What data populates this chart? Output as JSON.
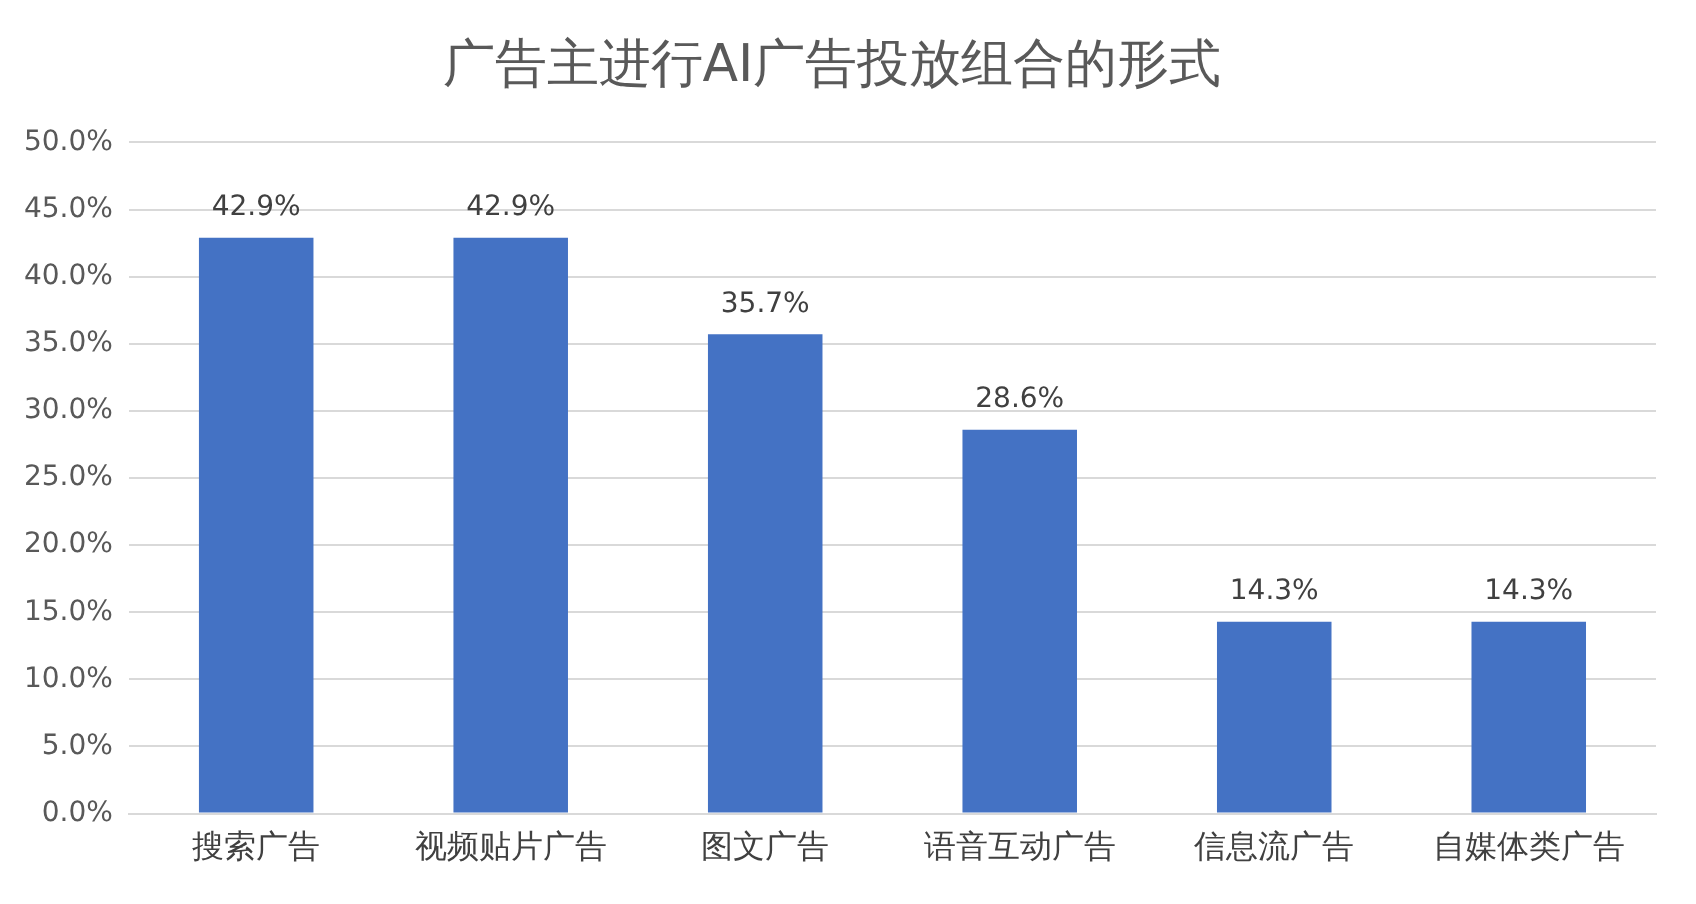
{
  "chart_data": {
    "type": "bar",
    "title": "广告主进行AI广告投放组合的形式",
    "categories": [
      "搜索广告",
      "视频贴片广告",
      "图文广告",
      "语音互动广告",
      "信息流广告",
      "自媒体类广告"
    ],
    "values": [
      42.9,
      42.9,
      35.7,
      28.6,
      14.3,
      14.3
    ],
    "value_labels": [
      "42.9%",
      "42.9%",
      "35.7%",
      "28.6%",
      "14.3%",
      "14.3%"
    ],
    "color": "#4472c4",
    "ylim": [
      0,
      50
    ],
    "yticks": [
      {
        "value": 0,
        "label": "0.0%"
      },
      {
        "value": 5,
        "label": "5.0%"
      },
      {
        "value": 10,
        "label": "10.0%"
      },
      {
        "value": 15,
        "label": "15.0%"
      },
      {
        "value": 20,
        "label": "20.0%"
      },
      {
        "value": 25,
        "label": "25.0%"
      },
      {
        "value": 30,
        "label": "30.0%"
      },
      {
        "value": 35,
        "label": "35.0%"
      },
      {
        "value": 40,
        "label": "40.0%"
      },
      {
        "value": 45,
        "label": "45.0%"
      },
      {
        "value": 50,
        "label": "50.0%"
      }
    ],
    "grid": "y",
    "legend": false
  }
}
